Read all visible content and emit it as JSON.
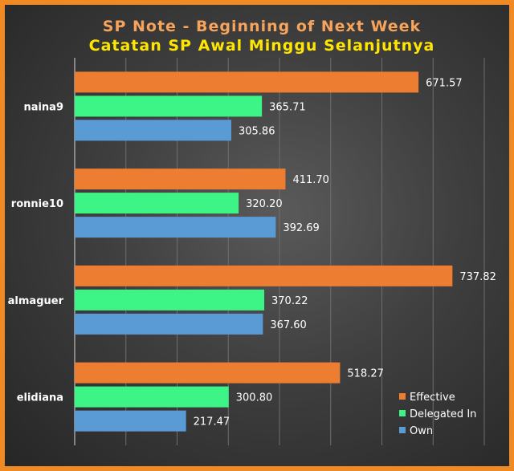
{
  "title": "SP Note - Beginning of Next Week",
  "subtitle": "Catatan SP Awal Minggu Selanjutnya",
  "colors": {
    "frame": "#f08a24",
    "title": "#f6a35c",
    "subtitle": "#ffe600",
    "effective": "#ed7d31",
    "delegated": "#3df587",
    "own": "#5b9bd5"
  },
  "chart_data": {
    "type": "bar",
    "orientation": "horizontal",
    "categories": [
      "naina9",
      "ronnie10",
      "almaguer",
      "elidiana"
    ],
    "series": [
      {
        "name": "Effective",
        "values": [
          671.57,
          411.7,
          737.82,
          518.27
        ]
      },
      {
        "name": "Delegated In",
        "values": [
          365.71,
          320.2,
          370.22,
          300.8
        ]
      },
      {
        "name": "Own",
        "values": [
          305.86,
          392.69,
          367.6,
          217.47
        ]
      }
    ],
    "value_labels": [
      [
        "671.57",
        "411.70",
        "737.82",
        "518.27"
      ],
      [
        "365.71",
        "320.20",
        "370.22",
        "300.80"
      ],
      [
        "305.86",
        "392.69",
        "367.60",
        "217.47"
      ]
    ],
    "xlim": [
      0,
      800
    ],
    "grid": true,
    "legend_position": "bottom-right"
  }
}
